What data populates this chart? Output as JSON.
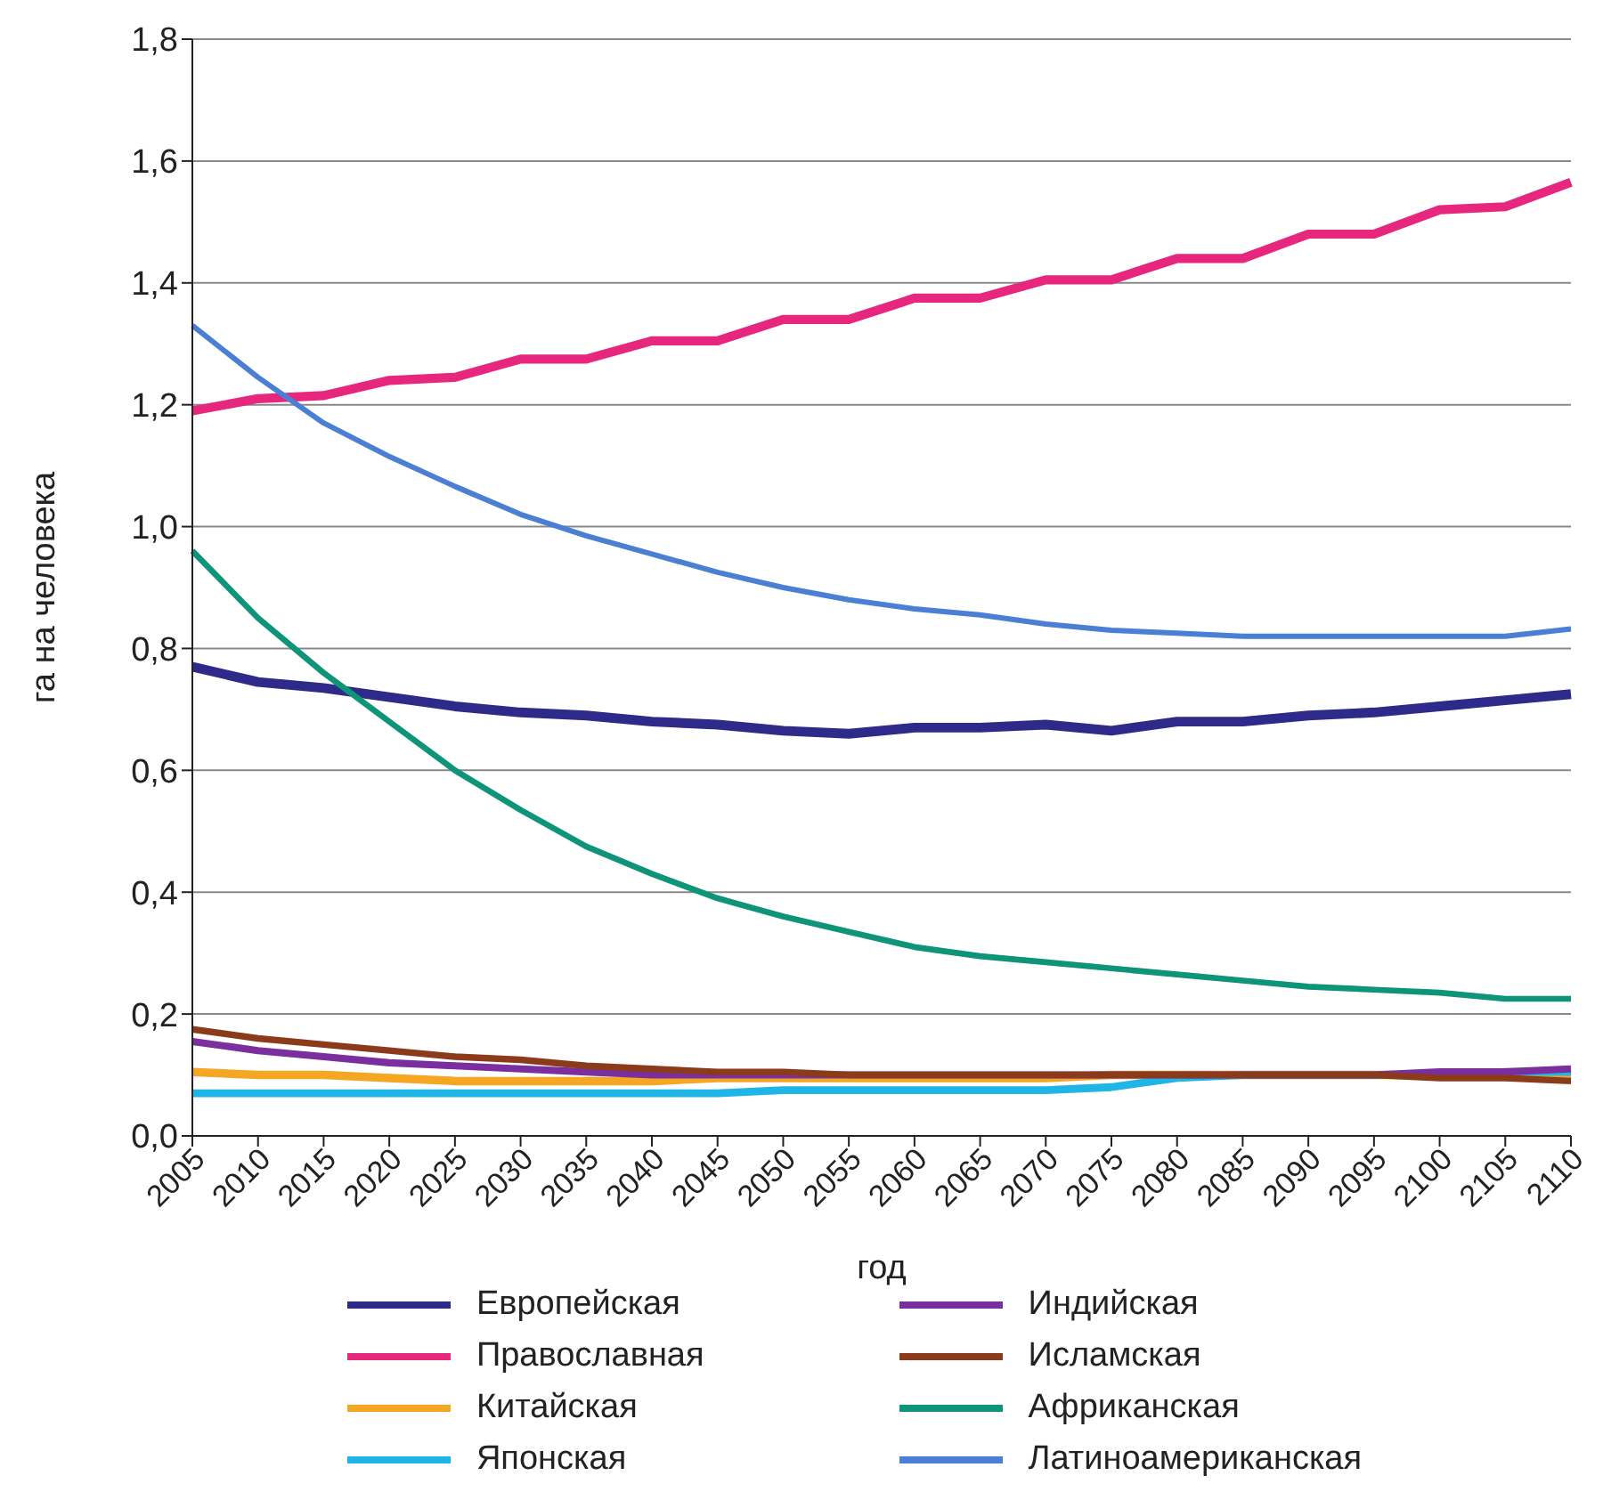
{
  "chart_data": {
    "type": "line",
    "xlabel": "год",
    "ylabel": "га на человека",
    "categories": [
      "2005",
      "2010",
      "2015",
      "2020",
      "2025",
      "2030",
      "2035",
      "2040",
      "2045",
      "2050",
      "2055",
      "2060",
      "2065",
      "2070",
      "2075",
      "2080",
      "2085",
      "2090",
      "2095",
      "2100",
      "2105",
      "2110"
    ],
    "ylim": [
      0,
      1.8
    ],
    "yticks": [
      {
        "value": 0,
        "label": "0,0"
      },
      {
        "value": 0.2,
        "label": "0,2"
      },
      {
        "value": 0.4,
        "label": "0,4"
      },
      {
        "value": 0.6,
        "label": "0,6"
      },
      {
        "value": 0.8,
        "label": "0,8"
      },
      {
        "value": 1,
        "label": "1,0"
      },
      {
        "value": 1.2,
        "label": "1,2"
      },
      {
        "value": 1.4,
        "label": "1,4"
      },
      {
        "value": 1.6,
        "label": "1,6"
      },
      {
        "value": 1.8,
        "label": "1,8"
      }
    ],
    "grid": "y",
    "legend": "bottom",
    "marker": "none",
    "line_style": "solid",
    "series": [
      {
        "name": "Европейская",
        "color": "#2e2a8a",
        "values": [
          0.77,
          0.745,
          0.735,
          0.72,
          0.705,
          0.695,
          0.69,
          0.68,
          0.675,
          0.665,
          0.66,
          0.67,
          0.67,
          0.675,
          0.665,
          0.68,
          0.68,
          0.69,
          0.695,
          0.705,
          0.715,
          0.725
        ]
      },
      {
        "name": "Православная",
        "color": "#e6277d",
        "values": [
          1.19,
          1.21,
          1.215,
          1.24,
          1.245,
          1.275,
          1.275,
          1.305,
          1.305,
          1.34,
          1.34,
          1.375,
          1.375,
          1.405,
          1.405,
          1.44,
          1.44,
          1.48,
          1.48,
          1.52,
          1.525,
          1.565
        ]
      },
      {
        "name": "Китайская",
        "color": "#f5a623",
        "values": [
          0.105,
          0.1,
          0.1,
          0.095,
          0.09,
          0.09,
          0.09,
          0.09,
          0.095,
          0.095,
          0.095,
          0.095,
          0.095,
          0.095,
          0.1,
          0.1,
          0.1,
          0.1,
          0.1,
          0.1,
          0.1,
          0.1
        ]
      },
      {
        "name": "Японская",
        "color": "#1fb5e6",
        "values": [
          0.07,
          0.07,
          0.07,
          0.07,
          0.07,
          0.07,
          0.07,
          0.07,
          0.07,
          0.075,
          0.075,
          0.075,
          0.075,
          0.075,
          0.08,
          0.095,
          0.1,
          0.1,
          0.1,
          0.1,
          0.105,
          0.105
        ]
      },
      {
        "name": "Индийская",
        "color": "#7b2f9e",
        "values": [
          0.155,
          0.14,
          0.13,
          0.12,
          0.115,
          0.11,
          0.105,
          0.1,
          0.1,
          0.1,
          0.1,
          0.1,
          0.1,
          0.1,
          0.1,
          0.1,
          0.1,
          0.1,
          0.1,
          0.105,
          0.105,
          0.11
        ]
      },
      {
        "name": "Исламская",
        "color": "#8b3a1a",
        "values": [
          0.175,
          0.16,
          0.15,
          0.14,
          0.13,
          0.125,
          0.115,
          0.11,
          0.105,
          0.105,
          0.1,
          0.1,
          0.1,
          0.1,
          0.1,
          0.1,
          0.1,
          0.1,
          0.1,
          0.095,
          0.095,
          0.09
        ]
      },
      {
        "name": "Африканская",
        "color": "#0e9478",
        "values": [
          0.96,
          0.85,
          0.76,
          0.68,
          0.6,
          0.535,
          0.475,
          0.43,
          0.39,
          0.36,
          0.335,
          0.31,
          0.295,
          0.285,
          0.275,
          0.265,
          0.255,
          0.245,
          0.24,
          0.235,
          0.225,
          0.225
        ]
      },
      {
        "name": "Латиноамериканская",
        "color": "#4a7fd4",
        "values": [
          1.33,
          1.245,
          1.17,
          1.115,
          1.066,
          1.02,
          0.985,
          0.955,
          0.925,
          0.9,
          0.88,
          0.865,
          0.855,
          0.84,
          0.83,
          0.825,
          0.82,
          0.82,
          0.82,
          0.82,
          0.82,
          0.832
        ]
      }
    ]
  }
}
